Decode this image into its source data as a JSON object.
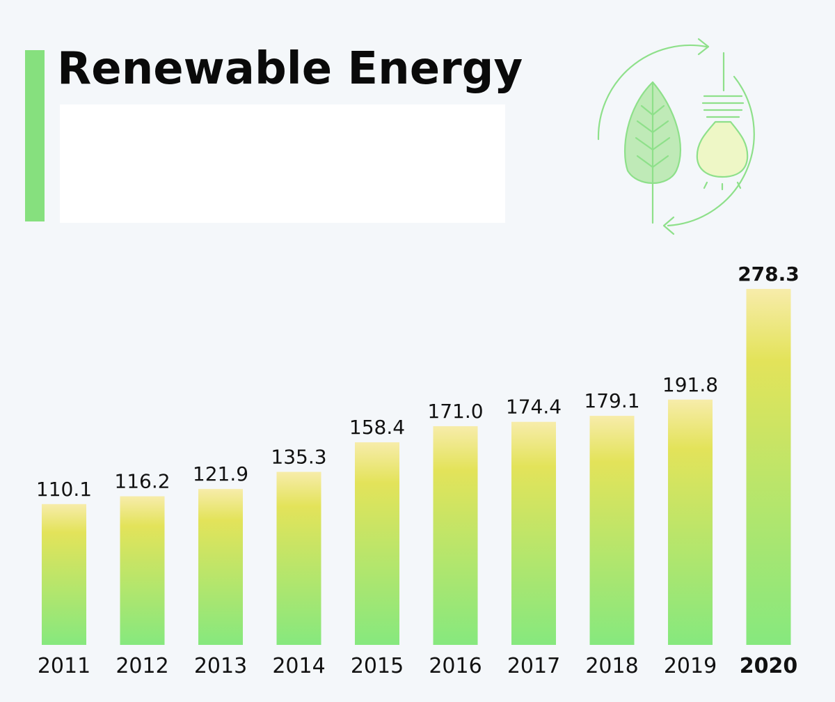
{
  "header": {
    "title": "Renewable Energy"
  },
  "icons": {
    "main": "leaf-lightbulb-cycle-icon"
  },
  "colors": {
    "accent": "#86e07e",
    "bar_top": "#f7ecaa",
    "bar_mid": "#e3e35a",
    "bar_bottom": "#86e87e",
    "icon_stroke": "#8ee08a"
  },
  "chart_data": {
    "type": "bar",
    "title": "Renewable Energy",
    "categories": [
      "2011",
      "2012",
      "2013",
      "2014",
      "2015",
      "2016",
      "2017",
      "2018",
      "2019",
      "2020"
    ],
    "values": [
      110.1,
      116.2,
      121.9,
      135.3,
      158.4,
      171.0,
      174.4,
      179.1,
      191.8,
      278.3
    ],
    "value_labels": [
      "110.1",
      "116.2",
      "121.9",
      "135.3",
      "158.4",
      "171.0",
      "174.4",
      "179.1",
      "191.8",
      "278.3"
    ],
    "highlighted_category": "2020",
    "xlabel": "",
    "ylabel": "",
    "grid": false,
    "legend": "none"
  }
}
